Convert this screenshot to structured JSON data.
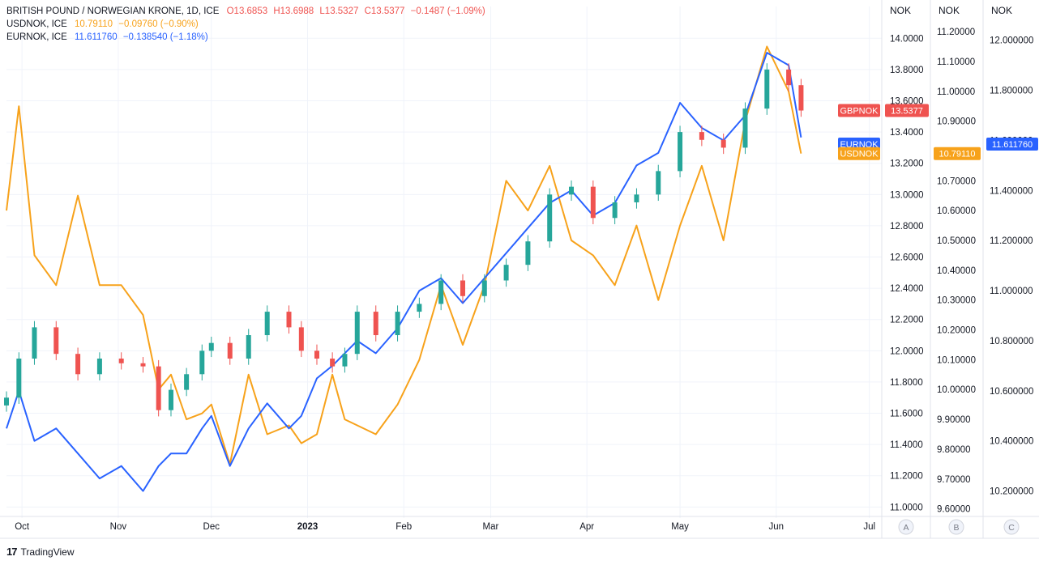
{
  "legend": {
    "main": {
      "name": "BRITISH POUND / NORWEGIAN KRONE, 1D, ICE",
      "o": "O13.6853",
      "h": "H13.6988",
      "l": "L13.5327",
      "c": "C13.5377",
      "change": "−0.1487 (−1.09%)"
    },
    "s1": {
      "name": "USDNOK, ICE",
      "value": "10.79110",
      "change": "−0.09760 (−0.90%)"
    },
    "s2": {
      "name": "EURNOK, ICE",
      "value": "11.611760",
      "change": "−0.138540 (−1.18%)"
    }
  },
  "colors": {
    "up": "#26a69a",
    "down": "#ef5350",
    "usd": "#f7a21b",
    "eur": "#2962ff",
    "grid": "#f0f3fa",
    "axis_text": "#131722",
    "badge_gbp": "#ef5350",
    "badge_eur": "#2962ff",
    "badge_usd": "#f7a21b"
  },
  "axes": {
    "unit": "NOK",
    "a_label": "A",
    "b_label": "B",
    "c_label": "C",
    "a_ticks": [
      "14.0000",
      "13.8000",
      "13.6000",
      "13.4000",
      "13.2000",
      "13.0000",
      "12.8000",
      "12.6000",
      "12.4000",
      "12.2000",
      "12.0000",
      "11.8000",
      "11.6000",
      "11.4000",
      "11.2000",
      "11.0000"
    ],
    "b_ticks": [
      "11.20000",
      "11.10000",
      "11.00000",
      "10.90000",
      "10.80000",
      "10.70000",
      "10.60000",
      "10.50000",
      "10.40000",
      "10.30000",
      "10.20000",
      "10.10000",
      "10.00000",
      "9.90000",
      "9.80000",
      "9.70000",
      "9.60000"
    ],
    "c_ticks": [
      "12.000000",
      "11.800000",
      "11.600000",
      "11.400000",
      "11.200000",
      "11.000000",
      "10.800000",
      "10.600000",
      "10.400000",
      "10.200000"
    ],
    "x_ticks": [
      "Oct",
      "Nov",
      "Dec",
      "2023",
      "Feb",
      "Mar",
      "Apr",
      "May",
      "Jun",
      "Jul"
    ]
  },
  "badges": {
    "gbp_label": "GBPNOK",
    "gbp_value": "13.5377",
    "eur_label": "EURNOK",
    "eur_value": "11.611760",
    "usd_label": "USDNOK",
    "usd_value": "10.79110"
  },
  "brand": {
    "logo": "17",
    "name": "TradingView"
  },
  "chart_data": {
    "type": "line",
    "title": "BRITISH POUND / NORWEGIAN KRONE, 1D, ICE",
    "x_range": [
      "2022-09-26",
      "2023-07-05"
    ],
    "axes": {
      "A": {
        "unit": "NOK",
        "range": [
          10.95,
          14.1
        ],
        "series": "GBPNOK"
      },
      "B": {
        "unit": "NOK",
        "range": [
          9.58,
          11.23
        ],
        "series": "USDNOK"
      },
      "C": {
        "unit": "NOK",
        "range": [
          10.105,
          12.07
        ],
        "series": "EURNOK"
      }
    },
    "series": [
      {
        "name": "GBPNOK",
        "type": "candlestick",
        "axis": "A",
        "points": [
          [
            "2022-09-26",
            11.7
          ],
          [
            "2022-09-30",
            11.95
          ],
          [
            "2022-10-05",
            12.15
          ],
          [
            "2022-10-12",
            11.98
          ],
          [
            "2022-10-19",
            11.85
          ],
          [
            "2022-10-26",
            11.95
          ],
          [
            "2022-11-02",
            11.92
          ],
          [
            "2022-11-09",
            11.9
          ],
          [
            "2022-11-14",
            11.62
          ],
          [
            "2022-11-18",
            11.75
          ],
          [
            "2022-11-23",
            11.85
          ],
          [
            "2022-11-28",
            12.0
          ],
          [
            "2022-12-01",
            12.05
          ],
          [
            "2022-12-07",
            11.95
          ],
          [
            "2022-12-13",
            12.1
          ],
          [
            "2022-12-19",
            12.25
          ],
          [
            "2022-12-26",
            12.15
          ],
          [
            "2022-12-30",
            12.0
          ],
          [
            "2023-01-04",
            11.95
          ],
          [
            "2023-01-09",
            11.9
          ],
          [
            "2023-01-13",
            11.98
          ],
          [
            "2023-01-17",
            12.25
          ],
          [
            "2023-01-23",
            12.1
          ],
          [
            "2023-01-30",
            12.25
          ],
          [
            "2023-02-06",
            12.3
          ],
          [
            "2023-02-13",
            12.45
          ],
          [
            "2023-02-20",
            12.35
          ],
          [
            "2023-02-27",
            12.45
          ],
          [
            "2023-03-06",
            12.55
          ],
          [
            "2023-03-13",
            12.7
          ],
          [
            "2023-03-20",
            13.0
          ],
          [
            "2023-03-27",
            13.05
          ],
          [
            "2023-04-03",
            12.85
          ],
          [
            "2023-04-10",
            12.95
          ],
          [
            "2023-04-17",
            13.0
          ],
          [
            "2023-04-24",
            13.15
          ],
          [
            "2023-05-01",
            13.4
          ],
          [
            "2023-05-08",
            13.35
          ],
          [
            "2023-05-15",
            13.3
          ],
          [
            "2023-05-22",
            13.55
          ],
          [
            "2023-05-29",
            13.8
          ],
          [
            "2023-06-05",
            13.7
          ],
          [
            "2023-06-09",
            13.5377
          ]
        ]
      },
      {
        "name": "USDNOK",
        "type": "line",
        "axis": "B",
        "points": [
          [
            "2022-09-26",
            10.6
          ],
          [
            "2022-09-30",
            10.95
          ],
          [
            "2022-10-05",
            10.45
          ],
          [
            "2022-10-12",
            10.35
          ],
          [
            "2022-10-19",
            10.65
          ],
          [
            "2022-10-26",
            10.35
          ],
          [
            "2022-11-02",
            10.35
          ],
          [
            "2022-11-09",
            10.25
          ],
          [
            "2022-11-14",
            10.0
          ],
          [
            "2022-11-18",
            10.05
          ],
          [
            "2022-11-23",
            9.9
          ],
          [
            "2022-11-28",
            9.92
          ],
          [
            "2022-12-01",
            9.95
          ],
          [
            "2022-12-07",
            9.75
          ],
          [
            "2022-12-13",
            10.05
          ],
          [
            "2022-12-19",
            9.85
          ],
          [
            "2022-12-26",
            9.88
          ],
          [
            "2022-12-30",
            9.82
          ],
          [
            "2023-01-04",
            9.85
          ],
          [
            "2023-01-09",
            10.05
          ],
          [
            "2023-01-13",
            9.9
          ],
          [
            "2023-01-17",
            9.88
          ],
          [
            "2023-01-23",
            9.85
          ],
          [
            "2023-01-30",
            9.95
          ],
          [
            "2023-02-06",
            10.1
          ],
          [
            "2023-02-13",
            10.35
          ],
          [
            "2023-02-20",
            10.15
          ],
          [
            "2023-02-27",
            10.35
          ],
          [
            "2023-03-06",
            10.7
          ],
          [
            "2023-03-13",
            10.6
          ],
          [
            "2023-03-20",
            10.75
          ],
          [
            "2023-03-27",
            10.5
          ],
          [
            "2023-04-03",
            10.45
          ],
          [
            "2023-04-10",
            10.35
          ],
          [
            "2023-04-17",
            10.55
          ],
          [
            "2023-04-24",
            10.3
          ],
          [
            "2023-05-01",
            10.55
          ],
          [
            "2023-05-08",
            10.75
          ],
          [
            "2023-05-15",
            10.5
          ],
          [
            "2023-05-22",
            10.9
          ],
          [
            "2023-05-29",
            11.15
          ],
          [
            "2023-06-05",
            11.0
          ],
          [
            "2023-06-09",
            10.7911
          ]
        ]
      },
      {
        "name": "EURNOK",
        "type": "line",
        "axis": "C",
        "points": [
          [
            "2022-09-26",
            10.45
          ],
          [
            "2022-09-30",
            10.6
          ],
          [
            "2022-10-05",
            10.4
          ],
          [
            "2022-10-12",
            10.45
          ],
          [
            "2022-10-19",
            10.35
          ],
          [
            "2022-10-26",
            10.25
          ],
          [
            "2022-11-02",
            10.3
          ],
          [
            "2022-11-09",
            10.2
          ],
          [
            "2022-11-14",
            10.3
          ],
          [
            "2022-11-18",
            10.35
          ],
          [
            "2022-11-23",
            10.35
          ],
          [
            "2022-11-28",
            10.45
          ],
          [
            "2022-12-01",
            10.5
          ],
          [
            "2022-12-07",
            10.3
          ],
          [
            "2022-12-13",
            10.45
          ],
          [
            "2022-12-19",
            10.55
          ],
          [
            "2022-12-26",
            10.45
          ],
          [
            "2022-12-30",
            10.5
          ],
          [
            "2023-01-04",
            10.65
          ],
          [
            "2023-01-09",
            10.7
          ],
          [
            "2023-01-13",
            10.75
          ],
          [
            "2023-01-17",
            10.8
          ],
          [
            "2023-01-23",
            10.75
          ],
          [
            "2023-01-30",
            10.85
          ],
          [
            "2023-02-06",
            11.0
          ],
          [
            "2023-02-13",
            11.05
          ],
          [
            "2023-02-20",
            10.95
          ],
          [
            "2023-02-27",
            11.05
          ],
          [
            "2023-03-06",
            11.15
          ],
          [
            "2023-03-13",
            11.25
          ],
          [
            "2023-03-20",
            11.35
          ],
          [
            "2023-03-27",
            11.4
          ],
          [
            "2023-04-03",
            11.3
          ],
          [
            "2023-04-10",
            11.35
          ],
          [
            "2023-04-17",
            11.5
          ],
          [
            "2023-04-24",
            11.55
          ],
          [
            "2023-05-01",
            11.75
          ],
          [
            "2023-05-08",
            11.65
          ],
          [
            "2023-05-15",
            11.6
          ],
          [
            "2023-05-22",
            11.7
          ],
          [
            "2023-05-29",
            11.95
          ],
          [
            "2023-06-05",
            11.9
          ],
          [
            "2023-06-09",
            11.61176
          ]
        ]
      }
    ]
  }
}
